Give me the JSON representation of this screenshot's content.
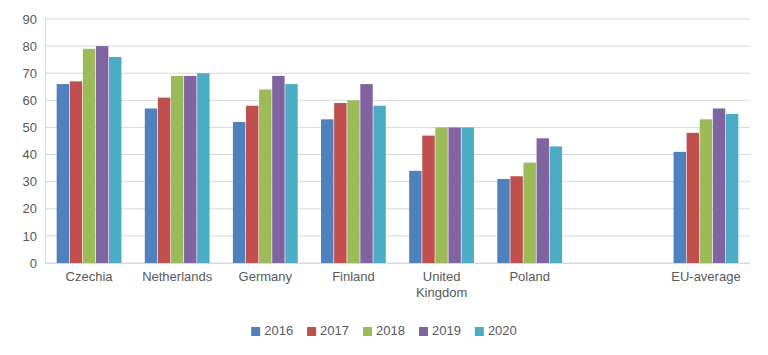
{
  "chart_data": {
    "type": "bar",
    "categories": [
      "Czechia",
      "Netherlands",
      "Germany",
      "Finland",
      "United Kingdom",
      "Poland",
      null,
      "EU-average"
    ],
    "series": [
      {
        "name": "2016",
        "color": "#4f81bd",
        "values": [
          66,
          57,
          52,
          53,
          34,
          31,
          null,
          41
        ]
      },
      {
        "name": "2017",
        "color": "#c0504d",
        "values": [
          67,
          61,
          58,
          59,
          47,
          32,
          null,
          48
        ]
      },
      {
        "name": "2018",
        "color": "#9bbb59",
        "values": [
          79,
          69,
          64,
          60,
          50,
          37,
          null,
          53
        ]
      },
      {
        "name": "2019",
        "color": "#8064a2",
        "values": [
          80,
          69,
          69,
          66,
          50,
          46,
          null,
          57
        ]
      },
      {
        "name": "2020",
        "color": "#4bacc6",
        "values": [
          76,
          70,
          66,
          58,
          50,
          43,
          null,
          55
        ]
      }
    ],
    "ylim": [
      0,
      90
    ],
    "yticks": [
      0,
      10,
      20,
      30,
      40,
      50,
      60,
      70,
      80,
      90
    ],
    "grid": true,
    "legend": "bottom"
  }
}
